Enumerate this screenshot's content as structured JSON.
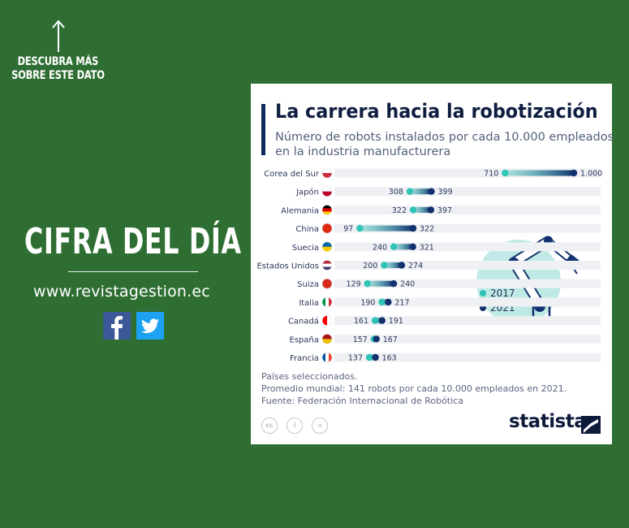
{
  "promo": {
    "cta": "DESCUBRA MÁS SOBRE ESTE DATO",
    "heading": "CIFRA DEL DÍA",
    "website": "www.revistagestion.ec",
    "social": [
      {
        "name": "facebook",
        "icon": "facebook-icon",
        "color": "#3b5998"
      },
      {
        "name": "twitter",
        "icon": "twitter-icon",
        "color": "#1da1f2"
      }
    ]
  },
  "chart_data": {
    "type": "dumbbell",
    "title": "La carrera hacia la robotización",
    "subtitle": "Número de robots instalados por cada 10.000 empleados en la industria manufacturera",
    "categories": [
      "Corea del Sur",
      "Japón",
      "Alemania",
      "China",
      "Suecia",
      "Estados Unidos",
      "Suiza",
      "Italia",
      "Canadá",
      "España",
      "Francia"
    ],
    "series": [
      {
        "name": "2017",
        "color": "#2ec4b6",
        "values": [
          710,
          308,
          322,
          97,
          240,
          200,
          129,
          190,
          161,
          157,
          137
        ]
      },
      {
        "name": "2021",
        "color": "#12316e",
        "values": [
          1000,
          399,
          397,
          322,
          321,
          274,
          240,
          217,
          191,
          167,
          163
        ]
      }
    ],
    "value_labels": {
      "2017": [
        "710",
        "308",
        "322",
        "97",
        "240",
        "200",
        "129",
        "190",
        "161",
        "157",
        "137"
      ],
      "2021": [
        "1.000",
        "399",
        "397",
        "322",
        "321",
        "274",
        "240",
        "217",
        "191",
        "167",
        "163"
      ]
    },
    "xlim": [
      0,
      1000
    ],
    "legend_position": "right",
    "notes": [
      "Países seleccionados.",
      "Promedio mundial: 141 robots por cada 10.000 empleados en 2021.",
      "Fuente: Federación Internacional de Robótica"
    ],
    "license_icons": [
      "cc-icon",
      "by-icon",
      "nd-icon"
    ],
    "license_labels": [
      "cc",
      "i",
      "="
    ],
    "brand": "statista"
  }
}
